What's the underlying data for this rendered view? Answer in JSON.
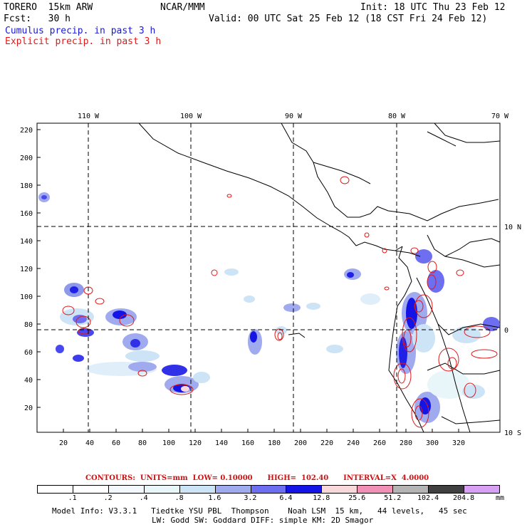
{
  "header": {
    "model": "TORERO  15km ARW",
    "org": "NCAR/MMM",
    "init": "Init: 18 UTC Thu 23 Feb 12",
    "fcst": "Fcst:   30 h",
    "valid": "Valid: 00 UTC Sat 25 Feb 12 (18 CST Fri 24 Feb 12)",
    "field1": "Cumulus precip. in past 3 h",
    "field2": "Explicit precip. in past 3 h"
  },
  "axes": {
    "top_ticks": [
      "110 W",
      "100 W",
      "90 W",
      "80 W",
      "70 W"
    ],
    "right_ticks": [
      "10 N",
      "0",
      "10 S"
    ],
    "left_ticks": [
      "220",
      "200",
      "180",
      "160",
      "140",
      "120",
      "100",
      "80",
      "60",
      "40",
      "20"
    ],
    "bottom_ticks": [
      "20",
      "40",
      "60",
      "80",
      "100",
      "120",
      "140",
      "160",
      "180",
      "200",
      "220",
      "240",
      "260",
      "280",
      "300",
      "320"
    ]
  },
  "contours": {
    "label": "CONTOURS:  UNITS=mm  LOW= 0.10000      HIGH=  102.40      INTERVAL=X  4.0000"
  },
  "legend": {
    "labels": [
      ".1",
      ".2",
      ".4",
      ".8",
      "1.6",
      "3.2",
      "6.4",
      "12.8",
      "25.6",
      "51.2",
      "102.4",
      "204.8"
    ],
    "unit": "mm",
    "colors": [
      "#ffffff",
      "#ffffff",
      "#f2f8fb",
      "#e8f6fa",
      "#cce4f6",
      "#a0aaee",
      "#6e6ef0",
      "#1414e6",
      "#f8d8da",
      "#f090b4",
      "#b4b4b4",
      "#404040",
      "#d8a0f4"
    ]
  },
  "footer": {
    "line1": "Model Info: V3.3.1   Tiedtke YSU PBL  Thompson    Noah LSM  15 km,   44 levels,   45 sec",
    "line2": "LW: Godd SW: Goddard DIFF: simple KM: 2D Smagor"
  }
}
